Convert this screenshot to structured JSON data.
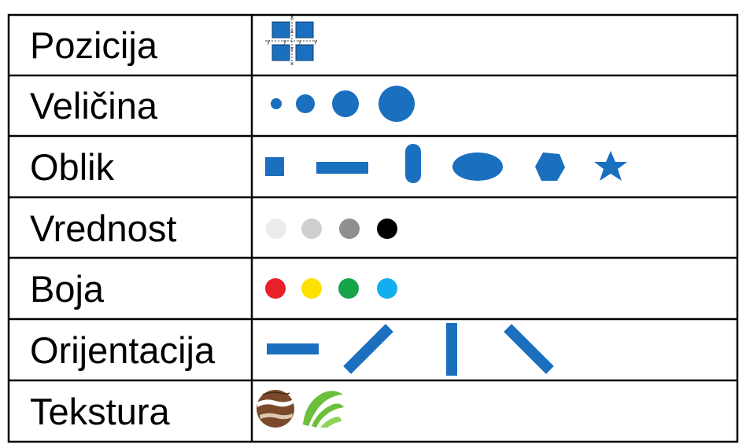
{
  "title": "",
  "rows": [
    {
      "label": "Pozicija"
    },
    {
      "label": "Veličina"
    },
    {
      "label": "Oblik"
    },
    {
      "label": "Vrednost"
    },
    {
      "label": "Boja"
    },
    {
      "label": "Orijentacija"
    },
    {
      "label": "Tekstura"
    }
  ],
  "pozicija_axis_labels": {
    "x": "x",
    "y": "y"
  },
  "colors": {
    "mark_blue": "#1a6fbf",
    "grid_line": "#000000",
    "value_steps": [
      "#ececec",
      "#cfcfcf",
      "#8f8f8f",
      "#000000"
    ],
    "hues": [
      "#e8202a",
      "#fde100",
      "#16a34a",
      "#12aef0"
    ],
    "texture_brown": "#7a4a2a",
    "texture_green": "#6cbf3a"
  },
  "shapes": [
    "square-icon",
    "bar-icon",
    "pill-icon",
    "ellipse-icon",
    "hexagon-icon",
    "star-icon"
  ],
  "orientations": [
    "horizontal",
    "diagonal-up",
    "vertical",
    "diagonal-down"
  ]
}
